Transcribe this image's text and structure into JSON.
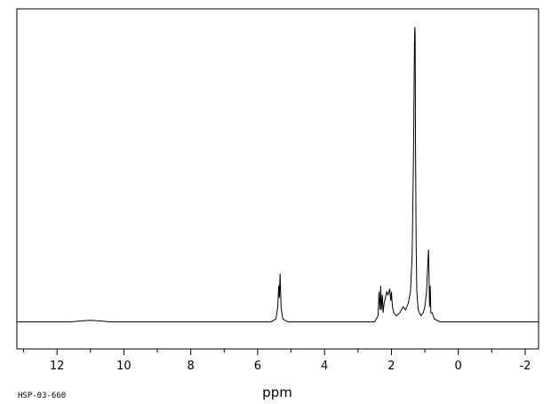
{
  "chart_data": {
    "type": "line",
    "title": "",
    "xlabel": "ppm",
    "ylabel": "",
    "sample_code": "HSP-03-660",
    "x_reversed": true,
    "xlim": [
      13.2,
      -2.4
    ],
    "ylim": [
      -0.09,
      1.04
    ],
    "grid": false,
    "xticks": [
      12,
      10,
      8,
      6,
      4,
      2,
      0,
      -2
    ],
    "xtick_labels": [
      "12",
      "10",
      "8",
      "6",
      "4",
      "2",
      "0",
      "-2"
    ],
    "series": [
      {
        "x": [
          13.2,
          11.6,
          11.3,
          11.0,
          10.7,
          10.4,
          5.6,
          5.45,
          5.4,
          5.37,
          5.35,
          5.33,
          5.3,
          5.25,
          5.1,
          2.5,
          2.4,
          2.37,
          2.34,
          2.32,
          2.3,
          2.27,
          2.25,
          2.22,
          2.18,
          2.14,
          2.1,
          2.05,
          2.02,
          2.0,
          1.97,
          1.93,
          1.85,
          1.75,
          1.65,
          1.58,
          1.5,
          1.43,
          1.38,
          1.34,
          1.31,
          1.3,
          1.29,
          1.28,
          1.26,
          1.24,
          1.2,
          1.12,
          1.05,
          1.0,
          0.95,
          0.91,
          0.89,
          0.88,
          0.86,
          0.84,
          0.82,
          0.78,
          0.72,
          0.55,
          -2.4
        ],
        "y": [
          0.0,
          0.0,
          0.003,
          0.005,
          0.003,
          0.0,
          0.0,
          0.01,
          0.05,
          0.12,
          0.08,
          0.16,
          0.05,
          0.01,
          0.0,
          0.0,
          0.02,
          0.1,
          0.04,
          0.12,
          0.04,
          0.09,
          0.03,
          0.06,
          0.08,
          0.1,
          0.09,
          0.11,
          0.07,
          0.1,
          0.05,
          0.03,
          0.02,
          0.03,
          0.05,
          0.04,
          0.06,
          0.1,
          0.22,
          0.55,
          0.93,
          0.98,
          0.96,
          0.6,
          0.25,
          0.1,
          0.04,
          0.02,
          0.03,
          0.05,
          0.1,
          0.2,
          0.24,
          0.18,
          0.05,
          0.12,
          0.03,
          0.03,
          0.01,
          0.0,
          0.0
        ]
      }
    ]
  }
}
